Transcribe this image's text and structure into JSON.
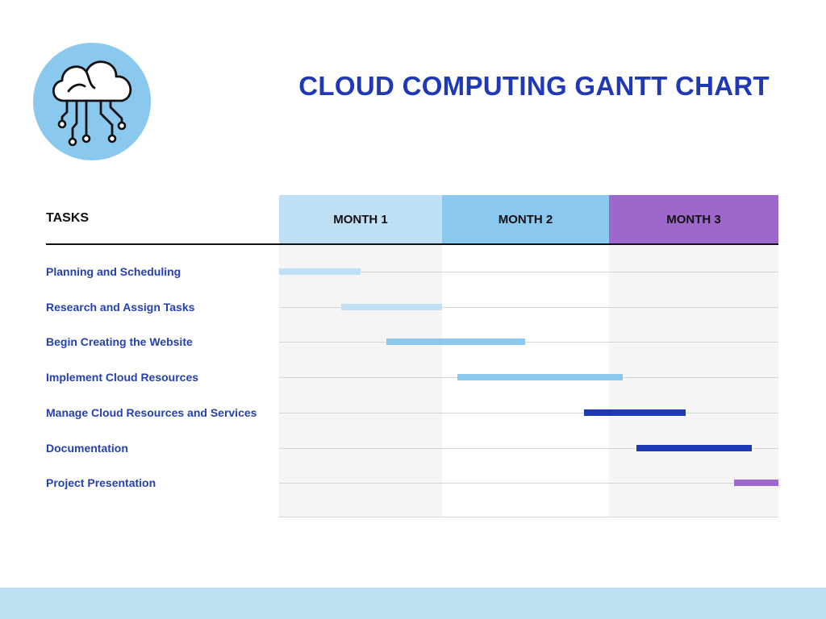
{
  "title": "CLOUD COMPUTING GANTT CHART",
  "logo_icon": "cloud-circuit-icon",
  "colors": {
    "title": "#1f38b3",
    "task_label": "#2540b0",
    "month1": "#bfe0f4",
    "month2": "#8ac8ee",
    "month3": "#9d67cc",
    "logo_bg": "#8ac8ee",
    "footer": "#bde0f3"
  },
  "chart_data": {
    "type": "gantt",
    "title": "CLOUD COMPUTING GANTT CHART",
    "row_header": "TASKS",
    "x_range": [
      0,
      3
    ],
    "x_unit": "months",
    "columns": [
      "MONTH 1",
      "MONTH 2",
      "MONTH 3"
    ],
    "tasks": [
      {
        "name": "Planning and Scheduling",
        "start": 0.0,
        "end": 0.5,
        "color": "#bfe0f4"
      },
      {
        "name": "Research and Assign Tasks",
        "start": 0.38,
        "end": 1.0,
        "color": "#bfe0f4"
      },
      {
        "name": "Begin Creating the Website",
        "start": 0.66,
        "end": 1.5,
        "color": "#8ac8ee"
      },
      {
        "name": "Implement Cloud Resources",
        "start": 1.09,
        "end": 2.08,
        "color": "#8ac8ee"
      },
      {
        "name": "Manage Cloud Resources and Services",
        "start": 1.85,
        "end": 2.45,
        "color": "#1f38b3"
      },
      {
        "name": "Documentation",
        "start": 2.16,
        "end": 2.84,
        "color": "#1f38b3"
      },
      {
        "name": "Project Presentation",
        "start": 2.74,
        "end": 3.0,
        "color": "#9d67cc"
      }
    ]
  }
}
